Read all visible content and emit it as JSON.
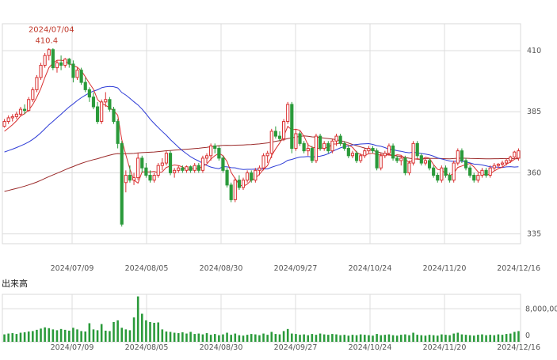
{
  "chart_data": {
    "type": "candlestick",
    "price_panel": {
      "y_ticks": [
        335,
        360,
        385,
        410
      ],
      "ylim": [
        331,
        421
      ],
      "x_tick_labels": [
        "2024/07/09",
        "2024/08/05",
        "2024/08/30",
        "2024/09/27",
        "2024/10/24",
        "2024/11/20",
        "2024/12/16"
      ],
      "annotation": {
        "date": "2024/07/04",
        "value": "410.4"
      }
    },
    "volume_panel": {
      "title": "出来高",
      "y_ticks": [
        "8,000,00",
        "0"
      ],
      "ylim": [
        0,
        11500000
      ],
      "x_tick_labels": [
        "2024/07/09",
        "2024/08/05",
        "2024/08/30",
        "2024/09/27",
        "2024/10/24",
        "2024/11/20",
        "2024/12/16"
      ]
    },
    "ohlc": [
      [
        379.0,
        382.0,
        378.5,
        381.0
      ],
      [
        381.0,
        383.5,
        380.0,
        382.5
      ],
      [
        382.5,
        384.0,
        381.0,
        383.0
      ],
      [
        383.0,
        385.0,
        382.0,
        384.0
      ],
      [
        384.0,
        387.0,
        383.0,
        386.0
      ],
      [
        386.0,
        388.0,
        384.0,
        385.5
      ],
      [
        385.5,
        391.0,
        385.0,
        390.0
      ],
      [
        390.0,
        395.0,
        389.0,
        394.0
      ],
      [
        394.0,
        400.0,
        393.0,
        399.0
      ],
      [
        399.0,
        405.0,
        398.0,
        404.0
      ],
      [
        404.0,
        409.0,
        403.0,
        408.0
      ],
      [
        408.0,
        411.0,
        406.0,
        410.4
      ],
      [
        410.4,
        411.0,
        402.0,
        403.0
      ],
      [
        403.0,
        406.0,
        401.0,
        405.0
      ],
      [
        405.0,
        408.0,
        402.0,
        404.0
      ],
      [
        404.0,
        407.0,
        403.0,
        406.5
      ],
      [
        406.5,
        407.0,
        403.0,
        404.5
      ],
      [
        404.5,
        406.0,
        397.0,
        399.0
      ],
      [
        399.0,
        403.0,
        398.0,
        402.0
      ],
      [
        402.0,
        403.0,
        396.0,
        397.0
      ],
      [
        397.0,
        399.0,
        393.0,
        394.0
      ],
      [
        394.0,
        395.0,
        389.0,
        391.0
      ],
      [
        391.0,
        393.0,
        386.0,
        387.0
      ],
      [
        387.0,
        389.0,
        380.0,
        381.0
      ],
      [
        381.0,
        390.0,
        380.0,
        389.0
      ],
      [
        389.0,
        393.0,
        387.0,
        390.0
      ],
      [
        390.0,
        391.0,
        385.0,
        386.0
      ],
      [
        386.0,
        387.0,
        380.0,
        381.0
      ],
      [
        381.0,
        382.0,
        370.0,
        372.0
      ],
      [
        372.0,
        373.0,
        338.0,
        339.0
      ],
      [
        356.0,
        361.0,
        352.0,
        359.0
      ],
      [
        359.0,
        363.0,
        356.0,
        357.0
      ],
      [
        357.0,
        360.0,
        355.0,
        358.0
      ],
      [
        358.0,
        368.0,
        357.0,
        366.0
      ],
      [
        366.0,
        367.0,
        360.0,
        362.0
      ],
      [
        362.0,
        364.0,
        358.0,
        359.0
      ],
      [
        359.0,
        361.0,
        356.0,
        357.0
      ],
      [
        357.0,
        360.0,
        356.0,
        359.0
      ],
      [
        359.0,
        364.0,
        358.0,
        363.0
      ],
      [
        363.0,
        366.0,
        361.0,
        364.0
      ],
      [
        364.0,
        369.0,
        363.0,
        368.0
      ],
      [
        368.0,
        369.0,
        359.0,
        360.0
      ],
      [
        360.0,
        362.0,
        358.0,
        361.0
      ],
      [
        361.0,
        363.0,
        360.0,
        362.0
      ],
      [
        362.0,
        363.0,
        360.0,
        361.0
      ],
      [
        361.0,
        363.0,
        360.0,
        362.5
      ],
      [
        362.5,
        363.0,
        360.0,
        361.0
      ],
      [
        361.0,
        364.0,
        360.0,
        363.0
      ],
      [
        363.0,
        364.0,
        360.0,
        361.0
      ],
      [
        361.0,
        367.0,
        360.0,
        366.0
      ],
      [
        366.0,
        368.0,
        364.0,
        367.0
      ],
      [
        367.0,
        372.0,
        365.0,
        371.0
      ],
      [
        371.0,
        372.0,
        368.0,
        370.0
      ],
      [
        370.0,
        371.0,
        365.0,
        366.0
      ],
      [
        366.0,
        367.0,
        360.0,
        361.0
      ],
      [
        361.0,
        362.0,
        354.0,
        355.0
      ],
      [
        355.0,
        356.0,
        348.0,
        349.0
      ],
      [
        349.0,
        358.0,
        348.0,
        357.0
      ],
      [
        357.0,
        359.0,
        353.0,
        354.0
      ],
      [
        354.0,
        358.0,
        353.0,
        357.0
      ],
      [
        357.0,
        361.0,
        356.0,
        360.0
      ],
      [
        360.0,
        361.0,
        356.0,
        357.0
      ],
      [
        357.0,
        362.0,
        356.0,
        361.0
      ],
      [
        361.0,
        363.0,
        359.0,
        362.0
      ],
      [
        362.0,
        368.0,
        361.0,
        367.0
      ],
      [
        367.0,
        369.0,
        364.0,
        368.0
      ],
      [
        368.0,
        378.0,
        366.0,
        377.0
      ],
      [
        377.0,
        379.0,
        374.0,
        375.0
      ],
      [
        375.0,
        377.0,
        373.0,
        374.0
      ],
      [
        374.0,
        382.0,
        373.0,
        381.0
      ],
      [
        381.0,
        389.0,
        380.0,
        388.0
      ],
      [
        388.0,
        389.0,
        368.0,
        370.0
      ],
      [
        370.0,
        378.0,
        369.0,
        376.0
      ],
      [
        376.0,
        377.0,
        371.0,
        372.0
      ],
      [
        372.0,
        373.0,
        368.0,
        369.0
      ],
      [
        369.0,
        372.0,
        367.0,
        370.0
      ],
      [
        370.0,
        371.0,
        364.0,
        365.0
      ],
      [
        365.0,
        376.0,
        364.0,
        375.0
      ],
      [
        375.0,
        376.0,
        369.0,
        370.0
      ],
      [
        370.0,
        373.0,
        369.0,
        372.0
      ],
      [
        372.0,
        373.0,
        368.0,
        369.0
      ],
      [
        369.0,
        374.0,
        368.0,
        373.0
      ],
      [
        373.0,
        376.0,
        371.0,
        375.0
      ],
      [
        375.0,
        376.0,
        371.0,
        372.0
      ],
      [
        372.0,
        373.0,
        369.0,
        370.0
      ],
      [
        370.0,
        371.0,
        366.0,
        367.0
      ],
      [
        367.0,
        369.0,
        366.0,
        368.0
      ],
      [
        368.0,
        369.0,
        364.0,
        365.0
      ],
      [
        365.0,
        368.0,
        364.0,
        367.0
      ],
      [
        367.0,
        370.0,
        366.0,
        369.0
      ],
      [
        369.0,
        371.0,
        368.0,
        370.0
      ],
      [
        370.0,
        371.0,
        368.0,
        369.0
      ],
      [
        369.0,
        370.0,
        361.0,
        362.0
      ],
      [
        362.0,
        368.0,
        361.0,
        367.0
      ],
      [
        367.0,
        369.0,
        366.0,
        368.0
      ],
      [
        368.0,
        372.0,
        367.0,
        371.0
      ],
      [
        371.0,
        372.0,
        365.0,
        366.0
      ],
      [
        366.0,
        367.0,
        364.0,
        365.0
      ],
      [
        365.0,
        367.0,
        363.0,
        366.0
      ],
      [
        366.0,
        367.0,
        359.0,
        360.0
      ],
      [
        360.0,
        365.0,
        359.0,
        364.0
      ],
      [
        364.0,
        373.0,
        363.0,
        372.0
      ],
      [
        372.0,
        373.0,
        366.0,
        367.0
      ],
      [
        367.0,
        368.0,
        363.0,
        364.0
      ],
      [
        364.0,
        366.0,
        363.0,
        365.0
      ],
      [
        365.0,
        366.0,
        361.0,
        362.0
      ],
      [
        362.0,
        363.0,
        358.0,
        359.0
      ],
      [
        359.0,
        360.0,
        356.0,
        357.0
      ],
      [
        357.0,
        363.0,
        356.0,
        362.0
      ],
      [
        362.0,
        363.0,
        358.0,
        359.0
      ],
      [
        359.0,
        360.0,
        356.0,
        357.0
      ],
      [
        357.0,
        365.0,
        356.0,
        364.0
      ],
      [
        364.0,
        370.0,
        363.0,
        369.0
      ],
      [
        369.0,
        370.0,
        364.0,
        365.0
      ],
      [
        365.0,
        366.0,
        361.0,
        362.0
      ],
      [
        362.0,
        363.0,
        358.0,
        359.0
      ],
      [
        359.0,
        360.0,
        356.0,
        357.0
      ],
      [
        357.0,
        360.0,
        356.0,
        359.0
      ],
      [
        359.0,
        362.0,
        358.0,
        361.0
      ],
      [
        361.0,
        362.0,
        358.0,
        359.0
      ],
      [
        359.0,
        363.0,
        358.0,
        362.0
      ],
      [
        362.0,
        364.0,
        361.0,
        363.0
      ],
      [
        363.0,
        364.0,
        362.0,
        363.5
      ],
      [
        363.5,
        365.0,
        362.0,
        364.0
      ],
      [
        364.0,
        366.0,
        363.0,
        365.0
      ],
      [
        365.0,
        367.0,
        364.0,
        366.5
      ],
      [
        366.5,
        369.0,
        366.0,
        368.5
      ],
      [
        366.0,
        370.0,
        365.0,
        369.0
      ]
    ],
    "volume": [
      1800000,
      2000000,
      2100000,
      1900000,
      2200000,
      2300000,
      2500000,
      2600000,
      2900000,
      3200000,
      3500000,
      3300000,
      3000000,
      2800000,
      3100000,
      2900000,
      2700000,
      3400000,
      3000000,
      2600000,
      2500000,
      4500000,
      3000000,
      2800000,
      4300000,
      2700000,
      2600000,
      4800000,
      5200000,
      3400000,
      3000000,
      2800000,
      5900000,
      11000000,
      6800000,
      5200000,
      4800000,
      4600000,
      4700000,
      3000000,
      2500000,
      2400000,
      2200000,
      2100000,
      2300000,
      2000000,
      2400000,
      1900000,
      2000000,
      1800000,
      2100000,
      1700000,
      1900000,
      1600000,
      1800000,
      2200000,
      1700000,
      2000000,
      1600000,
      1500000,
      1700000,
      1900000,
      1800000,
      1600000,
      2000000,
      1700000,
      2400000,
      1900000,
      1800000,
      2600000,
      3100000,
      2000000,
      1900000,
      1700000,
      1800000,
      1600000,
      1900000,
      1700000,
      2000000,
      1800000,
      1700000,
      1900000,
      1800000,
      1600000,
      1700000,
      1500000,
      1700000,
      1600000,
      1800000,
      1700000,
      1600000,
      1500000,
      1900000,
      1600000,
      1700000,
      1800000,
      1600000,
      1500000,
      1700000,
      1800000,
      1600000,
      2200000,
      1700000,
      1600000,
      1500000,
      1700000,
      1600000,
      1500000,
      1800000,
      1700000,
      1600000,
      2000000,
      2200000,
      1800000,
      1700000,
      1600000,
      1500000,
      1700000,
      1800000,
      1600000,
      1700000,
      1600000,
      1800000,
      1700000,
      1900000,
      2000000,
      2400000,
      2600000
    ],
    "ma_short_color": "#d93030",
    "ma_mid_color": "#2d3bd6",
    "ma_long_color": "#9b2a2a",
    "up_color": "#d93030",
    "down_color": "#2a9a3a",
    "volume_color": "#2a9a3a",
    "grid": true
  }
}
